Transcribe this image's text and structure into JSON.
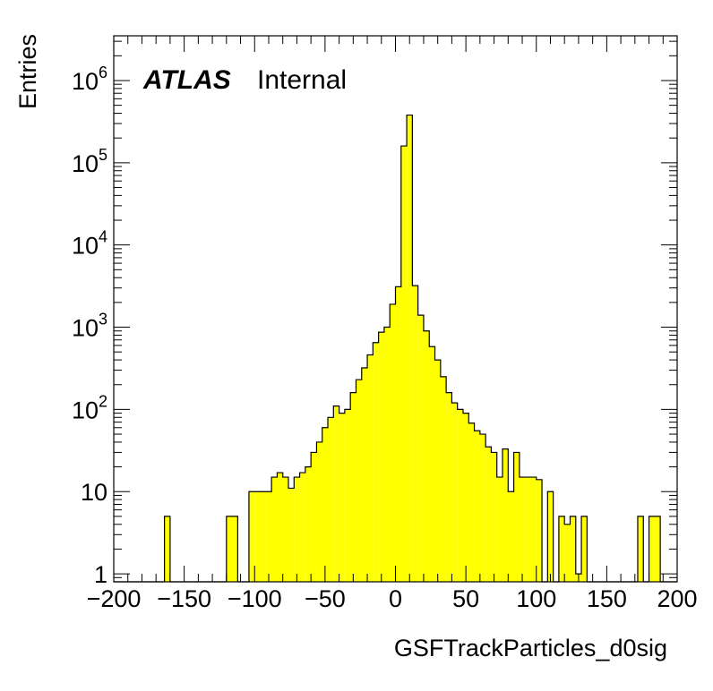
{
  "chart_data": {
    "type": "bar",
    "style": "histogram",
    "fill_color": "#ffff00",
    "line_color": "#000000",
    "xlabel": "GSFTrackParticles_d0sig",
    "ylabel": "Entries",
    "label_bold": "ATLAS",
    "label_text": "Internal",
    "xlim": [
      -200,
      200
    ],
    "ylim": [
      0.8,
      3500000
    ],
    "y_scale": "log",
    "x_ticks": [
      -200,
      -150,
      -100,
      -50,
      0,
      50,
      100,
      150,
      200
    ],
    "x_tick_labels": [
      "−200",
      "−150",
      "−100",
      "−50",
      "0",
      "50",
      "100",
      "150",
      "200"
    ],
    "y_ticks": [
      1,
      10,
      100,
      1000,
      10000,
      100000,
      1000000
    ],
    "y_tick_labels": [
      {
        "base": "1",
        "exp": ""
      },
      {
        "base": "10",
        "exp": ""
      },
      {
        "base": "10",
        "exp": "2"
      },
      {
        "base": "10",
        "exp": "3"
      },
      {
        "base": "10",
        "exp": "4"
      },
      {
        "base": "10",
        "exp": "5"
      },
      {
        "base": "10",
        "exp": "6"
      }
    ],
    "bin_edges": [
      -200,
      200
    ],
    "bin_width": 4,
    "values": [
      0,
      0,
      0,
      0,
      0,
      0,
      0,
      0,
      0,
      5,
      0,
      0,
      0,
      0,
      0,
      0,
      0,
      0,
      0,
      0,
      5,
      5,
      0,
      0,
      10,
      10,
      10,
      10,
      15,
      17,
      15,
      11,
      15,
      17,
      20,
      30,
      40,
      60,
      80,
      110,
      90,
      100,
      160,
      230,
      320,
      460,
      650,
      870,
      1000,
      1900,
      3100,
      160000,
      380000,
      3200,
      1400,
      900,
      580,
      400,
      250,
      160,
      120,
      100,
      90,
      68,
      55,
      50,
      35,
      30,
      15,
      33,
      10,
      30,
      15,
      15,
      15,
      14,
      0,
      10,
      0,
      5,
      4,
      5,
      1,
      5,
      0,
      0,
      0,
      0,
      0,
      0,
      0,
      0,
      0,
      5,
      0,
      5,
      5,
      0,
      0,
      0
    ]
  }
}
